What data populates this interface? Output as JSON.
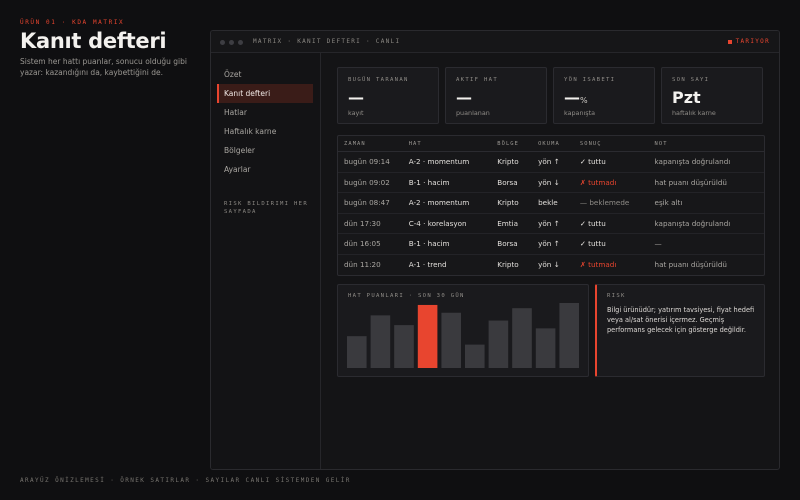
{
  "hero": {
    "eyebrow": "ÜRÜN 01 · KDA MATRIX",
    "title": "Kanıt defteri",
    "subtitle": "Sistem her hattı puanlar, sonucu olduğu gibi yazar: kazandığını da, kaybettiğini de."
  },
  "footer": "ARAYÜZ ÖNİZLEMESİ · ÖRNEK SATIRLAR · SAYILAR CANLI SİSTEMDEN GELİR",
  "window": {
    "breadcrumb": "MATRIX · KANIT DEFTERI · CANLI",
    "live_label": "TARIYOR"
  },
  "sidebar": {
    "items": [
      {
        "label": "Özet",
        "active": false
      },
      {
        "label": "Kanıt defteri",
        "active": true
      },
      {
        "label": "Hatlar",
        "active": false
      },
      {
        "label": "Haftalık karne",
        "active": false
      },
      {
        "label": "Bölgeler",
        "active": false
      },
      {
        "label": "Ayarlar",
        "active": false
      }
    ],
    "note": "RISK BILDIRIMI HER SAYFADA"
  },
  "cards": [
    {
      "label": "BUGÜN TARANAN",
      "value": "—",
      "unit": "",
      "foot": "kayıt"
    },
    {
      "label": "AKTIF HAT",
      "value": "—",
      "unit": "",
      "foot": "puanlanan"
    },
    {
      "label": "YÖN ISABETI",
      "value": "—",
      "unit": "%",
      "foot": "kapanışta"
    },
    {
      "label": "SON SAYI",
      "value": "Pzt",
      "unit": "",
      "foot": "haftalık karne"
    }
  ],
  "table": {
    "headers": [
      "ZAMAN",
      "HAT",
      "BÖLGE",
      "OKUMA",
      "SONUÇ",
      "NOT"
    ],
    "rows": [
      {
        "time": "bugün 09:14",
        "line": "A-2 · momentum",
        "region": "Kripto",
        "reading": "yön ↑",
        "result": "✓ tuttu",
        "result_status": "ok",
        "note": "kapanışta doğrulandı"
      },
      {
        "time": "bugün 09:02",
        "line": "B-1 · hacim",
        "region": "Borsa",
        "reading": "yön ↓",
        "result": "✗ tutmadı",
        "result_status": "miss",
        "note": "hat puanı düşürüldü"
      },
      {
        "time": "bugün 08:47",
        "line": "A-2 · momentum",
        "region": "Kripto",
        "reading": "bekle",
        "result": "— beklemede",
        "result_status": "wait",
        "note": "eşik altı"
      },
      {
        "time": "dün 17:30",
        "line": "C-4 · korelasyon",
        "region": "Emtia",
        "reading": "yön ↑",
        "result": "✓ tuttu",
        "result_status": "ok",
        "note": "kapanışta doğrulandı"
      },
      {
        "time": "dün 16:05",
        "line": "B-1 · hacim",
        "region": "Borsa",
        "reading": "yön ↑",
        "result": "✓ tuttu",
        "result_status": "ok",
        "note": "—"
      },
      {
        "time": "dün 11:20",
        "line": "A-1 · trend",
        "region": "Kripto",
        "reading": "yön ↓",
        "result": "✗ tutmadı",
        "result_status": "miss",
        "note": "hat puanı düşürüldü"
      }
    ]
  },
  "chart": {
    "title": "HAT PUANLARI · SON 30 GÜN"
  },
  "chart_data": {
    "type": "bar",
    "values": [
      0.49,
      0.81,
      0.66,
      0.97,
      0.85,
      0.36,
      0.73,
      0.92,
      0.61,
      1.0
    ],
    "highlight_index": 3,
    "colors": {
      "bar": "#3a3a3e",
      "highlight": "#e8452f"
    },
    "grid": false
  },
  "risk": {
    "title": "RISK",
    "text": "Bilgi ürünüdür; yatırım tavsiyesi, fiyat hedefi veya al/sat önerisi içermez. Geçmiş performans gelecek için gösterge değildir."
  },
  "colors": {
    "accent": "#e8452f",
    "background": "#0f0f11",
    "panel": "#1a1a1d"
  }
}
